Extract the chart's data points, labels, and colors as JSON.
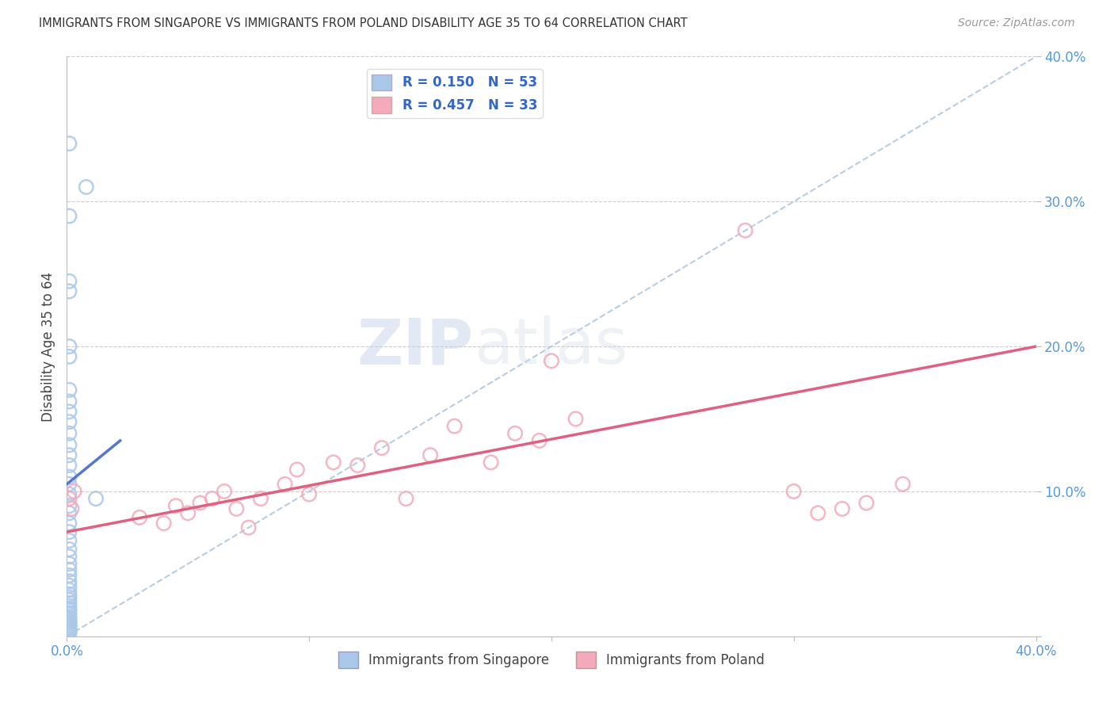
{
  "title": "IMMIGRANTS FROM SINGAPORE VS IMMIGRANTS FROM POLAND DISABILITY AGE 35 TO 64 CORRELATION CHART",
  "source": "Source: ZipAtlas.com",
  "ylabel": "Disability Age 35 to 64",
  "xlim": [
    0,
    0.4
  ],
  "ylim": [
    0,
    0.4
  ],
  "background_color": "#ffffff",
  "singapore_color": "#aac8e8",
  "poland_color": "#f4aabb",
  "singapore_line_color": "#5577cc",
  "poland_line_color": "#e06080",
  "diagonal_color": "#b0c8dd",
  "grid_color": "#cccccc",
  "singapore_R": 0.15,
  "singapore_N": 53,
  "poland_R": 0.457,
  "poland_N": 33,
  "sg_x": [
    0.001,
    0.008,
    0.001,
    0.001,
    0.001,
    0.001,
    0.001,
    0.001,
    0.001,
    0.001,
    0.001,
    0.001,
    0.001,
    0.001,
    0.001,
    0.001,
    0.001,
    0.001,
    0.001,
    0.001,
    0.001,
    0.001,
    0.001,
    0.001,
    0.001,
    0.001,
    0.001,
    0.001,
    0.001,
    0.001,
    0.001,
    0.001,
    0.001,
    0.001,
    0.001,
    0.001,
    0.001,
    0.001,
    0.001,
    0.001,
    0.001,
    0.001,
    0.001,
    0.001,
    0.001,
    0.001,
    0.001,
    0.001,
    0.001,
    0.001,
    0.001,
    0.012,
    0.001
  ],
  "sg_y": [
    0.34,
    0.31,
    0.29,
    0.245,
    0.238,
    0.2,
    0.193,
    0.17,
    0.162,
    0.155,
    0.148,
    0.14,
    0.132,
    0.125,
    0.118,
    0.11,
    0.105,
    0.098,
    0.09,
    0.085,
    0.078,
    0.072,
    0.066,
    0.06,
    0.055,
    0.05,
    0.046,
    0.042,
    0.038,
    0.035,
    0.032,
    0.029,
    0.027,
    0.025,
    0.023,
    0.021,
    0.019,
    0.018,
    0.016,
    0.015,
    0.013,
    0.012,
    0.011,
    0.01,
    0.009,
    0.008,
    0.007,
    0.006,
    0.005,
    0.004,
    0.003,
    0.095,
    0.002
  ],
  "pl_x": [
    0.001,
    0.002,
    0.003,
    0.03,
    0.04,
    0.045,
    0.05,
    0.055,
    0.06,
    0.065,
    0.07,
    0.075,
    0.08,
    0.09,
    0.095,
    0.1,
    0.11,
    0.12,
    0.13,
    0.14,
    0.15,
    0.16,
    0.175,
    0.185,
    0.195,
    0.2,
    0.21,
    0.28,
    0.3,
    0.31,
    0.32,
    0.33,
    0.345
  ],
  "pl_y": [
    0.095,
    0.088,
    0.1,
    0.082,
    0.078,
    0.09,
    0.085,
    0.092,
    0.095,
    0.1,
    0.088,
    0.075,
    0.095,
    0.105,
    0.115,
    0.098,
    0.12,
    0.118,
    0.13,
    0.095,
    0.125,
    0.145,
    0.12,
    0.14,
    0.135,
    0.19,
    0.15,
    0.28,
    0.1,
    0.085,
    0.088,
    0.092,
    0.105
  ],
  "sg_line_x": [
    0.0,
    0.022
  ],
  "sg_line_y": [
    0.105,
    0.135
  ],
  "pl_line_x": [
    0.0,
    0.4
  ],
  "pl_line_y": [
    0.072,
    0.2
  ]
}
